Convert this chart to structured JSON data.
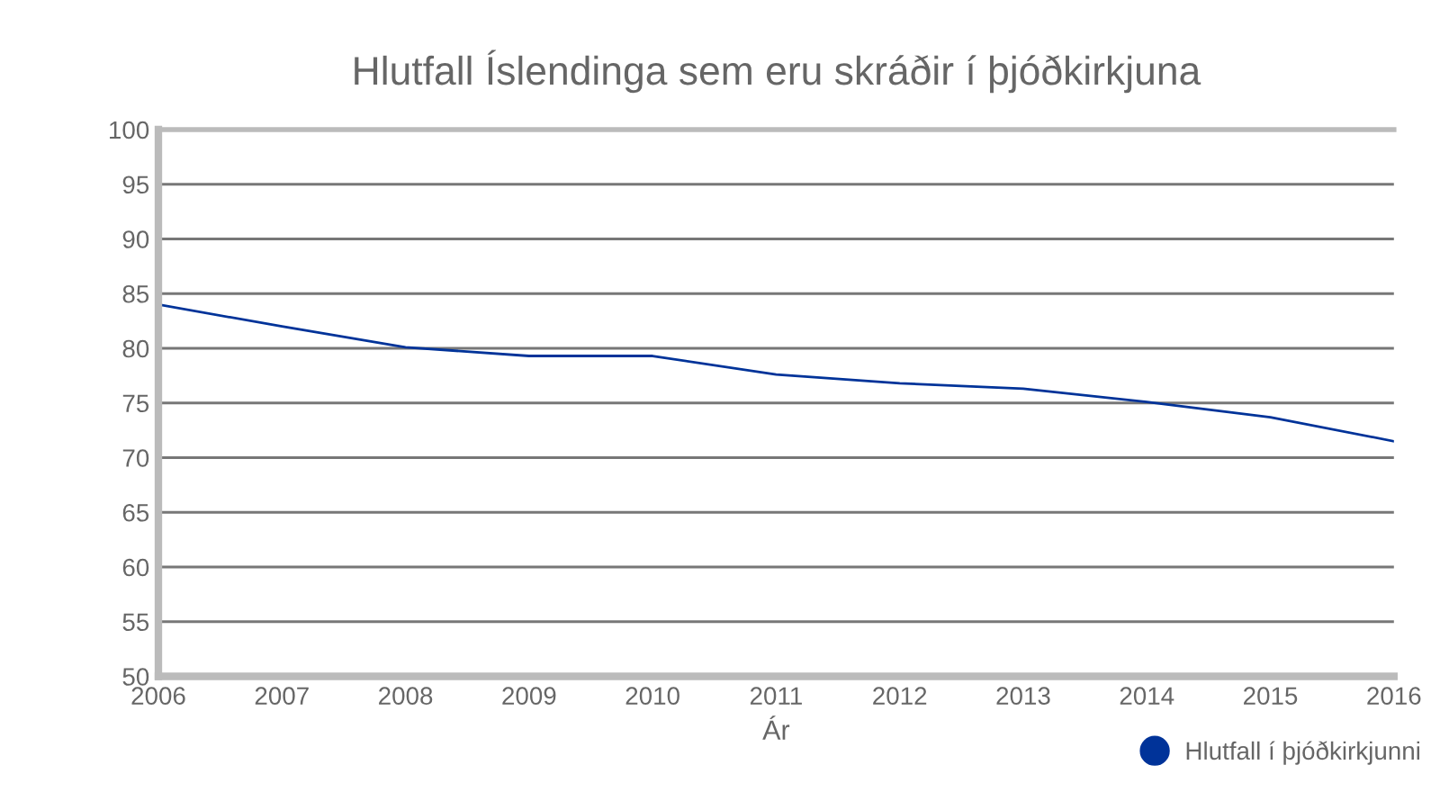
{
  "chart_data": {
    "type": "line",
    "title": "Hlutfall Íslendinga sem eru skráðir í þjóðkirkjuna",
    "xlabel": "Ár",
    "x": [
      2006,
      2007,
      2008,
      2009,
      2010,
      2011,
      2012,
      2013,
      2014,
      2015,
      2016
    ],
    "series": [
      {
        "name": "Hlutfall í þjóðkirkjunni",
        "color": "#003399",
        "values": [
          84.0,
          82.0,
          80.1,
          79.3,
          79.3,
          77.6,
          76.8,
          76.3,
          75.1,
          73.7,
          71.5
        ]
      }
    ],
    "xlim": [
      2006,
      2016
    ],
    "xticks": [
      2006,
      2007,
      2008,
      2009,
      2010,
      2011,
      2012,
      2013,
      2014,
      2015,
      2016
    ],
    "ylim": [
      50,
      100
    ],
    "yticks": [
      50,
      55,
      60,
      65,
      70,
      75,
      80,
      85,
      90,
      95,
      100
    ],
    "grid": "y",
    "legend": "bottom right",
    "marker": "none",
    "line_style": "solid"
  }
}
